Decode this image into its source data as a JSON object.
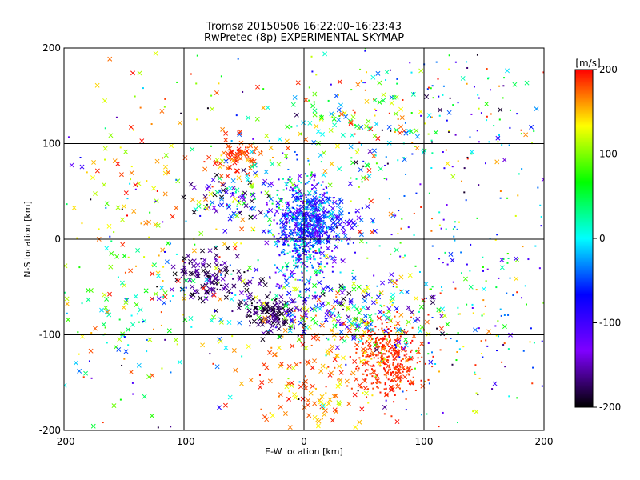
{
  "chart_data": {
    "type": "scatter",
    "title": "Tromsø 20150506 16:22:00–16:23:43",
    "subtitle": "RwPretec (8p) EXPERIMENTAL SKYMAP",
    "xlabel": "E-W location [km]",
    "ylabel": "N-S location [km]",
    "xlim": [
      -200,
      200
    ],
    "ylim": [
      -200,
      200
    ],
    "x_ticks": [
      "-200",
      "-100",
      "0",
      "100",
      "200"
    ],
    "y_ticks": [
      "-200",
      "-100",
      "0",
      "100",
      "200"
    ],
    "grid": true,
    "colorbar": {
      "label": "[m/s]",
      "min": -200,
      "max": 200,
      "ticks": [
        "200",
        "100",
        "0",
        "-100",
        "-200"
      ],
      "colormap": [
        "#000000",
        "#7f00ff",
        "#0000ff",
        "#00ffff",
        "#00ff00",
        "#ffff00",
        "#ff0000"
      ]
    },
    "clusters": [
      {
        "center": [
          0,
          10
        ],
        "spread": [
          12,
          28
        ],
        "count": 650,
        "velocity": [
          -150,
          40
        ],
        "marker": "dot"
      },
      {
        "center": [
          10,
          20
        ],
        "spread": [
          18,
          14
        ],
        "count": 200,
        "velocity": [
          -130,
          -10
        ],
        "marker": "x"
      },
      {
        "center": [
          -32,
          -78
        ],
        "spread": [
          12,
          9
        ],
        "count": 110,
        "velocity": [
          -200,
          -150
        ],
        "marker": "x"
      },
      {
        "center": [
          -75,
          -38
        ],
        "spread": [
          18,
          12
        ],
        "count": 120,
        "velocity": [
          -200,
          -140
        ],
        "marker": "x"
      },
      {
        "center": [
          60,
          -115
        ],
        "spread": [
          12,
          16
        ],
        "count": 120,
        "velocity": [
          185,
          200
        ],
        "marker": "dot"
      },
      {
        "center": [
          72,
          -128
        ],
        "spread": [
          14,
          20
        ],
        "count": 260,
        "velocity": [
          175,
          200
        ],
        "marker": "dot"
      },
      {
        "center": [
          15,
          -145
        ],
        "spread": [
          30,
          40
        ],
        "count": 180,
        "velocity": [
          120,
          200
        ],
        "marker": "x"
      },
      {
        "center": [
          -55,
          85
        ],
        "spread": [
          10,
          10
        ],
        "count": 70,
        "velocity": [
          170,
          200
        ],
        "marker": "x"
      },
      {
        "center": [
          -55,
          42
        ],
        "spread": [
          20,
          16
        ],
        "count": 110,
        "velocity": [
          -200,
          100
        ],
        "marker": "x"
      },
      {
        "center": [
          40,
          -75
        ],
        "spread": [
          40,
          18
        ],
        "count": 220,
        "velocity": [
          -200,
          180
        ],
        "marker": "x"
      },
      {
        "center": [
          40,
          110
        ],
        "spread": [
          40,
          30
        ],
        "count": 150,
        "velocity": [
          -50,
          200
        ],
        "marker": "x"
      },
      {
        "center": [
          140,
          130
        ],
        "spread": [
          50,
          50
        ],
        "count": 150,
        "velocity": [
          -200,
          200
        ],
        "marker": "dot"
      },
      {
        "center": [
          -140,
          -70
        ],
        "spread": [
          45,
          45
        ],
        "count": 160,
        "velocity": [
          -50,
          200
        ],
        "marker": "x"
      },
      {
        "center": [
          -120,
          70
        ],
        "spread": [
          50,
          50
        ],
        "count": 110,
        "velocity": [
          100,
          200
        ],
        "marker": "x"
      },
      {
        "center": [
          120,
          -60
        ],
        "spread": [
          55,
          60
        ],
        "count": 200,
        "velocity": [
          -120,
          200
        ],
        "marker": "dot"
      },
      {
        "center": [
          0,
          0
        ],
        "spread": [
          120,
          120
        ],
        "count": 300,
        "velocity": [
          -200,
          200
        ],
        "marker": "dot"
      }
    ]
  }
}
